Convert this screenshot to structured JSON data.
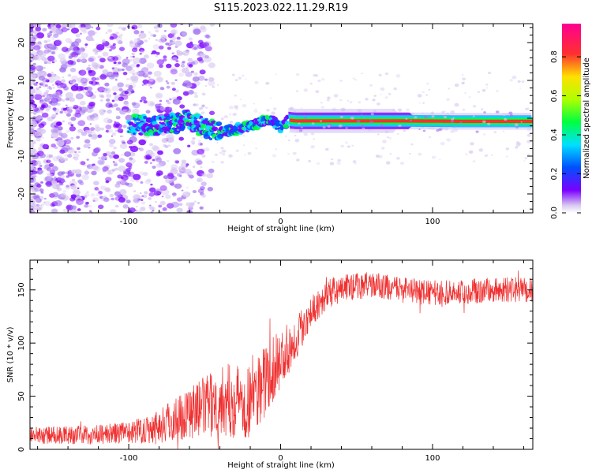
{
  "title": "S115.2023.022.11.29.R19",
  "chart_data": [
    {
      "type": "heatmap",
      "title": "S115.2023.022.11.29.R19",
      "xlabel": "Height of straight line (km)",
      "ylabel": "Frequency (Hz)",
      "xlim": [
        -165,
        166
      ],
      "ylim": [
        -25,
        25
      ],
      "xticks": [
        -100,
        0,
        100
      ],
      "yticks": [
        -20,
        -10,
        0,
        10,
        20
      ],
      "colorbar": {
        "label": "Normalized spectral amplitude",
        "range": [
          0.0,
          0.97
        ],
        "ticks": [
          0.0,
          0.2,
          0.4,
          0.6,
          0.8
        ],
        "tick_labels": [
          "0.0",
          "0.2",
          "0.4",
          "0.6",
          "0.8"
        ],
        "colormap": [
          "#d8c8f0",
          "#7a00ff",
          "#0050ff",
          "#00e0ff",
          "#00ff40",
          "#b0ff00",
          "#ffe000",
          "#ff3030",
          "#ff0090"
        ]
      },
      "ridge": {
        "x": [
          -100,
          -80,
          -60,
          -50,
          -40,
          -30,
          -20,
          -10,
          -5,
          0,
          5,
          10,
          40,
          80,
          120,
          166
        ],
        "frequency": [
          -1.5,
          -2,
          -0.5,
          -2.5,
          -4,
          -3,
          -2,
          -0.5,
          -0.8,
          -2.5,
          -0.5,
          -0.7,
          -0.7,
          -0.7,
          -0.8,
          -0.8
        ]
      },
      "grid": false
    },
    {
      "type": "line",
      "xlabel": "Height of straight line (km)",
      "ylabel": "SNR (10 * v/v)",
      "xlim": [
        -165,
        166
      ],
      "ylim": [
        0,
        178
      ],
      "xticks": [
        -100,
        0,
        100
      ],
      "yticks": [
        0,
        50,
        100,
        150
      ],
      "series_color": "#f03030",
      "trend": {
        "x": [
          -165,
          -120,
          -100,
          -80,
          -60,
          -40,
          -20,
          -10,
          0,
          10,
          20,
          30,
          40,
          60,
          80,
          100,
          120,
          140,
          166
        ],
        "y": [
          13,
          14,
          16,
          22,
          35,
          45,
          48,
          65,
          85,
          105,
          130,
          145,
          152,
          155,
          150,
          147,
          148,
          150,
          150
        ]
      },
      "noise_amplitude": {
        "x": [
          -165,
          -100,
          -60,
          -20,
          0,
          20,
          60,
          166
        ],
        "y": [
          8,
          10,
          25,
          40,
          28,
          15,
          12,
          12
        ]
      },
      "grid": false
    }
  ]
}
